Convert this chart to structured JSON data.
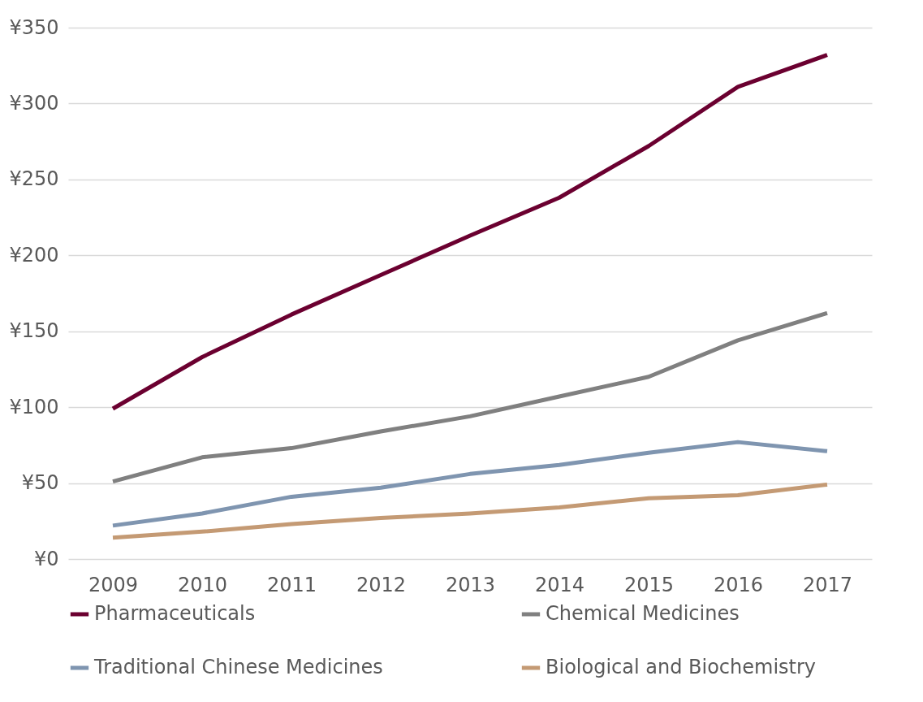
{
  "chart_data": {
    "type": "line",
    "categories": [
      "2009",
      "2010",
      "2011",
      "2012",
      "2013",
      "2014",
      "2015",
      "2016",
      "2017"
    ],
    "ylim": [
      0,
      350
    ],
    "yticks": [
      {
        "value": 0,
        "label": "¥0"
      },
      {
        "value": 50,
        "label": "¥50"
      },
      {
        "value": 100,
        "label": "¥100"
      },
      {
        "value": 150,
        "label": "¥150"
      },
      {
        "value": 200,
        "label": "¥200"
      },
      {
        "value": 250,
        "label": "¥250"
      },
      {
        "value": 300,
        "label": "¥300"
      },
      {
        "value": 350,
        "label": "¥350"
      }
    ],
    "grid": "y",
    "legend": "bottom",
    "marker": "none",
    "line_style": "solid",
    "series": [
      {
        "name": "Pharmaceuticals",
        "color": "#6b0030",
        "values": [
          99,
          133,
          161,
          187,
          213,
          238,
          272,
          311,
          332
        ]
      },
      {
        "name": "Chemical Medicines",
        "color": "#808080",
        "values": [
          51,
          67,
          73,
          84,
          94,
          107,
          120,
          144,
          162
        ]
      },
      {
        "name": "Traditional Chinese Medicines",
        "color": "#7f95b0",
        "values": [
          22,
          30,
          41,
          47,
          56,
          62,
          70,
          77,
          71
        ]
      },
      {
        "name": "Biological and Biochemistry",
        "color": "#c49a74",
        "values": [
          14,
          18,
          23,
          27,
          30,
          34,
          40,
          42,
          49
        ]
      }
    ]
  }
}
